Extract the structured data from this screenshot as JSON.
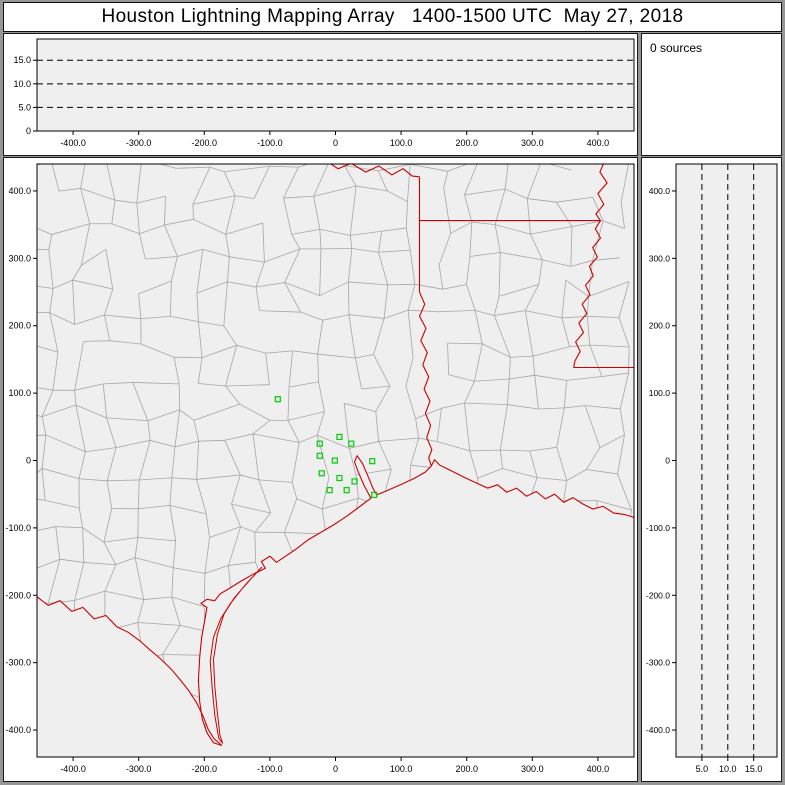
{
  "title": "Houston Lightning Mapping Array   1400-1500 UTC  May 27, 2018",
  "sources_label": "0 sources",
  "colors": {
    "page_bg": "#969696",
    "panel_bg": "#ffffff",
    "plot_bg": "#efefef",
    "frame": "#000000",
    "dash": "#000000",
    "county": "#a6a6a6",
    "border_red": "#cc0000",
    "station_green": "#00cc00"
  },
  "chart_data": [
    {
      "id": "ew_altitude",
      "type": "scatter",
      "description": "east-west distance (km) vs altitude (km) projection, no sources plotted",
      "x_range": [
        -455,
        455
      ],
      "y_range": [
        0,
        19.5
      ],
      "x_tick_values": [
        -400,
        -300,
        -200,
        -100,
        0,
        100,
        200,
        300,
        400
      ],
      "x_tick_labels": [
        "-400.0",
        "-300.0",
        "-200.0",
        "-100.0",
        "0",
        "100.0",
        "200.0",
        "300.0",
        "400.0"
      ],
      "y_tick_values": [
        0,
        5,
        10,
        15
      ],
      "y_tick_labels": [
        "0",
        "5.0",
        "10.0",
        "15.0"
      ],
      "dash_y": [
        5,
        10,
        15
      ],
      "points": []
    },
    {
      "id": "plan_map",
      "type": "scatter",
      "description": "plan view map centered on Houston, km east-west vs km north-south; green squares are LMA stations; red lines are state borders, coastline and rivers; gray mesh is county boundaries",
      "x_range": [
        -455,
        455
      ],
      "y_range": [
        -440,
        440
      ],
      "x_tick_values": [
        -400,
        -300,
        -200,
        -100,
        0,
        100,
        200,
        300,
        400
      ],
      "x_tick_labels": [
        "-400.0",
        "-300.0",
        "-200.0",
        "-100.0",
        "0",
        "100.0",
        "200.0",
        "300.0",
        "400.0"
      ],
      "y_tick_values": [
        -400,
        -300,
        -200,
        -100,
        0,
        100,
        200,
        300,
        400
      ],
      "y_tick_labels": [
        "-400.0",
        "-300.0",
        "-200.0",
        "-100.0",
        "0",
        "100.0",
        "200.0",
        "300.0",
        "400.0"
      ],
      "stations": [
        [
          -88,
          91
        ],
        [
          -24,
          25
        ],
        [
          6,
          35
        ],
        [
          24,
          25
        ],
        [
          -24,
          7
        ],
        [
          -1,
          0
        ],
        [
          -21,
          -19
        ],
        [
          6,
          -26
        ],
        [
          29,
          -31
        ],
        [
          -9,
          -44
        ],
        [
          17,
          -44
        ],
        [
          56,
          -1
        ],
        [
          59,
          -51
        ]
      ],
      "map_lines": {
        "red_river": [
          [
            -15,
            445
          ],
          [
            4,
            433
          ],
          [
            24,
            441
          ],
          [
            46,
            428
          ],
          [
            66,
            437
          ],
          [
            86,
            424
          ],
          [
            103,
            433
          ],
          [
            117,
            422
          ],
          [
            128,
            421
          ]
        ],
        "tx_ar_la": [
          [
            128,
            421
          ],
          [
            128,
            250
          ]
        ],
        "ar_la_33": [
          [
            128,
            356
          ],
          [
            404,
            356
          ]
        ],
        "mississippi": [
          [
            411,
            446
          ],
          [
            403,
            428
          ],
          [
            414,
            412
          ],
          [
            400,
            396
          ],
          [
            409,
            380
          ],
          [
            397,
            366
          ],
          [
            404,
            356
          ],
          [
            396,
            344
          ],
          [
            404,
            330
          ],
          [
            392,
            316
          ],
          [
            399,
            302
          ],
          [
            387,
            288
          ],
          [
            393,
            274
          ],
          [
            381,
            260
          ],
          [
            388,
            246
          ],
          [
            376,
            232
          ],
          [
            383,
            218
          ],
          [
            371,
            204
          ],
          [
            378,
            190
          ],
          [
            366,
            176
          ],
          [
            373,
            162
          ],
          [
            365,
            148
          ],
          [
            363,
            138
          ]
        ],
        "la_ms_31": [
          [
            363,
            138
          ],
          [
            460,
            138
          ]
        ],
        "sabine": [
          [
            128,
            250
          ],
          [
            136,
            232
          ],
          [
            128,
            214
          ],
          [
            138,
            196
          ],
          [
            130,
            178
          ],
          [
            140,
            160
          ],
          [
            133,
            142
          ],
          [
            142,
            124
          ],
          [
            135,
            106
          ],
          [
            144,
            88
          ],
          [
            137,
            70
          ],
          [
            145,
            52
          ],
          [
            139,
            34
          ],
          [
            147,
            16
          ],
          [
            142,
            4
          ],
          [
            146,
            -8
          ]
        ],
        "rio_grande": [
          [
            -458,
            -200
          ],
          [
            -438,
            -215
          ],
          [
            -420,
            -208
          ],
          [
            -402,
            -224
          ],
          [
            -385,
            -218
          ],
          [
            -368,
            -235
          ],
          [
            -350,
            -230
          ],
          [
            -333,
            -247
          ],
          [
            -316,
            -255
          ],
          [
            -299,
            -267
          ],
          [
            -284,
            -280
          ],
          [
            -267,
            -294
          ],
          [
            -251,
            -309
          ],
          [
            -237,
            -325
          ],
          [
            -224,
            -341
          ],
          [
            -212,
            -359
          ],
          [
            -202,
            -379
          ],
          [
            -194,
            -399
          ],
          [
            -185,
            -413
          ],
          [
            -173,
            -423
          ]
        ],
        "coast": [
          [
            -173,
            -423
          ],
          [
            -186,
            -419
          ],
          [
            -196,
            -404
          ],
          [
            -203,
            -384
          ],
          [
            -207,
            -358
          ],
          [
            -209,
            -326
          ],
          [
            -207,
            -292
          ],
          [
            -204,
            -262
          ],
          [
            -199,
            -236
          ],
          [
            -196,
            -218
          ],
          [
            -205,
            -212
          ],
          [
            -196,
            -206
          ],
          [
            -184,
            -208
          ],
          [
            -176,
            -198
          ],
          [
            -162,
            -190
          ],
          [
            -144,
            -179
          ],
          [
            -124,
            -168
          ],
          [
            -107,
            -160
          ],
          [
            -113,
            -150
          ],
          [
            -100,
            -142
          ],
          [
            -90,
            -151
          ],
          [
            -76,
            -142
          ],
          [
            -61,
            -132
          ],
          [
            -42,
            -118
          ],
          [
            -21,
            -106
          ],
          [
            -2,
            -95
          ],
          [
            6,
            -90
          ],
          [
            18,
            -82
          ],
          [
            32,
            -72
          ],
          [
            44,
            -63
          ],
          [
            54,
            -56
          ],
          [
            44,
            -38
          ],
          [
            35,
            -18
          ],
          [
            29,
            -2
          ],
          [
            33,
            7
          ],
          [
            41,
            -4
          ],
          [
            49,
            -22
          ],
          [
            57,
            -41
          ],
          [
            63,
            -51
          ],
          [
            80,
            -44
          ],
          [
            99,
            -36
          ],
          [
            119,
            -27
          ],
          [
            137,
            -17
          ],
          [
            146,
            -8
          ],
          [
            151,
            1
          ],
          [
            159,
            -7
          ],
          [
            176,
            -15
          ],
          [
            196,
            -25
          ],
          [
            214,
            -33
          ],
          [
            232,
            -41
          ],
          [
            247,
            -36
          ],
          [
            261,
            -47
          ],
          [
            276,
            -41
          ],
          [
            291,
            -53
          ],
          [
            306,
            -46
          ],
          [
            320,
            -57
          ],
          [
            334,
            -50
          ],
          [
            348,
            -62
          ],
          [
            362,
            -55
          ],
          [
            376,
            -64
          ],
          [
            392,
            -72
          ],
          [
            408,
            -68
          ],
          [
            424,
            -78
          ],
          [
            440,
            -80
          ],
          [
            460,
            -86
          ]
        ]
      },
      "island": [
        [
          -112,
          -158
        ],
        [
          -135,
          -182
        ],
        [
          -155,
          -205
        ],
        [
          -170,
          -228
        ],
        [
          -180,
          -258
        ],
        [
          -186,
          -295
        ],
        [
          -184,
          -335
        ],
        [
          -180,
          -375
        ],
        [
          -176,
          -408
        ],
        [
          -172,
          -420
        ],
        [
          -178,
          -412
        ],
        [
          -184,
          -378
        ],
        [
          -188,
          -338
        ],
        [
          -191,
          -298
        ],
        [
          -186,
          -262
        ],
        [
          -175,
          -235
        ],
        [
          -160,
          -212
        ],
        [
          -142,
          -190
        ],
        [
          -120,
          -166
        ],
        [
          -112,
          -158
        ]
      ],
      "county_step": 46,
      "county_jitter": 14,
      "county_skip": 0.12,
      "county_seed": 424242
    },
    {
      "id": "ns_altitude",
      "type": "scatter",
      "description": "altitude (km) vs north-south distance (km) projection, no sources plotted",
      "x_range": [
        0,
        19.5
      ],
      "y_range": [
        -440,
        440
      ],
      "x_tick_values": [
        5,
        10,
        15
      ],
      "x_tick_labels": [
        "5.0",
        "10.0",
        "15.0"
      ],
      "y_tick_values": [
        -400,
        -300,
        -200,
        -100,
        0,
        100,
        200,
        300,
        400
      ],
      "y_tick_labels": [
        "-400.0",
        "-300.0",
        "-200.0",
        "-100.0",
        "0",
        "100.0",
        "200.0",
        "300.0",
        "400.0"
      ],
      "dash_x": [
        5,
        10,
        15
      ],
      "points": []
    }
  ]
}
